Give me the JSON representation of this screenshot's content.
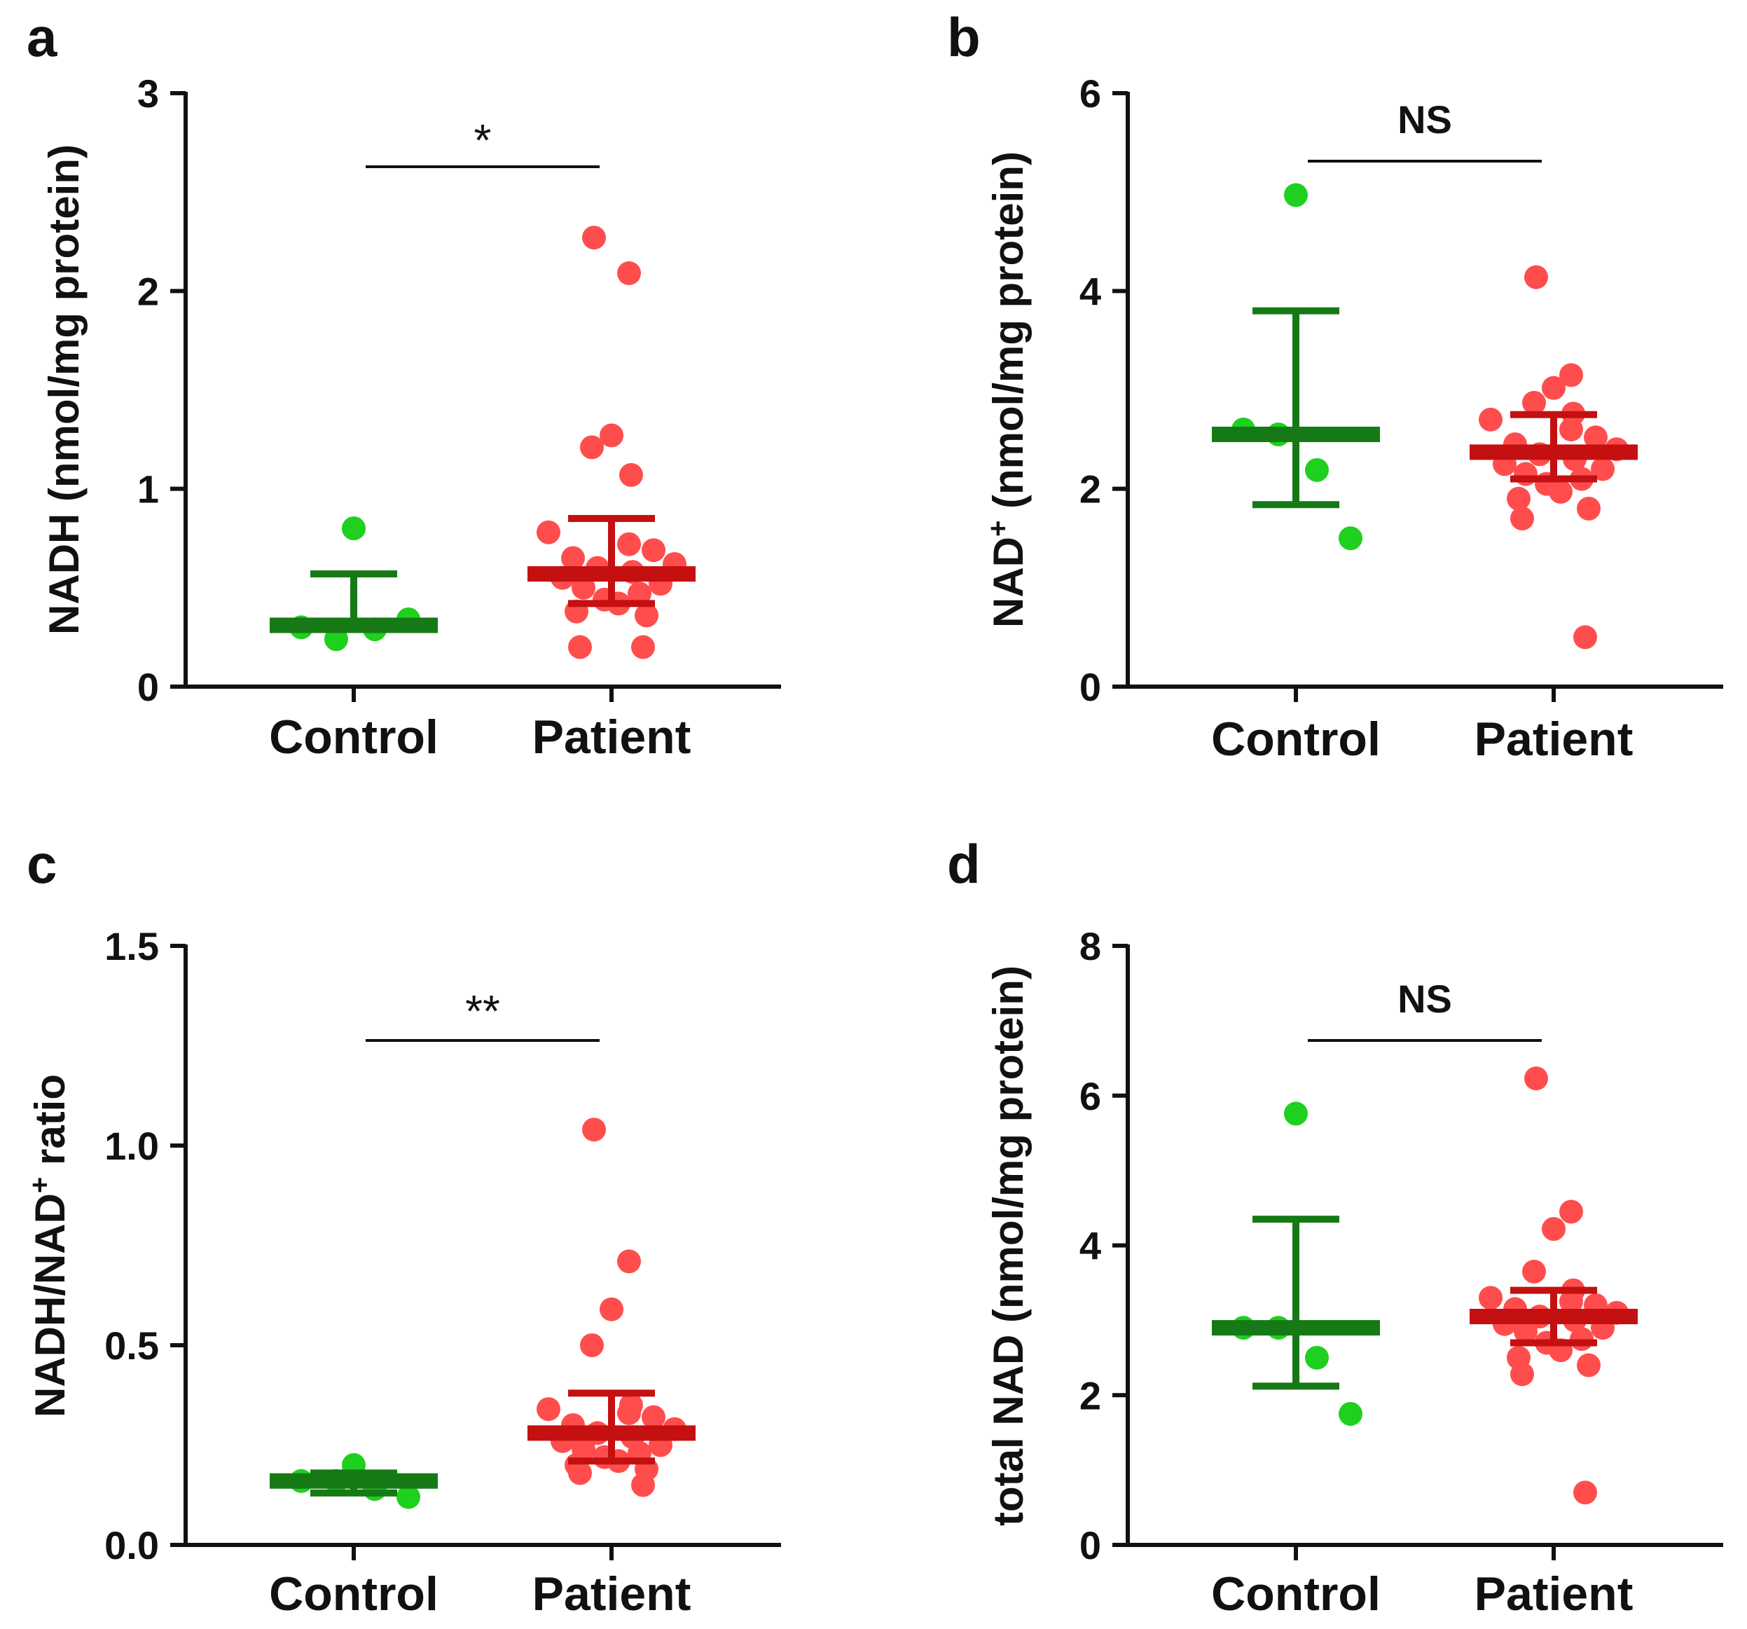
{
  "chart_data": [
    {
      "panel": "a",
      "type": "scatter",
      "title": "",
      "categories": [
        "Control",
        "Patient"
      ],
      "ylabel_parts": [
        {
          "t": "NADH (nmol/mg protein)"
        }
      ],
      "ylim": [
        0,
        3
      ],
      "yticks": [
        0,
        1,
        2,
        3
      ],
      "ytick_labels": [
        "0",
        "1",
        "2",
        "3"
      ],
      "significance": "*",
      "groups": [
        {
          "name": "Control",
          "values": [
            0.8,
            0.3,
            0.24,
            0.29,
            0.34
          ],
          "mean": 0.31,
          "err_low": 0.29,
          "err_high": 0.57
        },
        {
          "name": "Patient",
          "values": [
            2.27,
            2.09,
            1.27,
            1.21,
            1.07,
            0.78,
            0.72,
            0.69,
            0.65,
            0.62,
            0.6,
            0.58,
            0.55,
            0.52,
            0.5,
            0.47,
            0.44,
            0.42,
            0.38,
            0.36,
            0.2,
            0.2
          ],
          "mean": 0.57,
          "err_low": 0.42,
          "err_high": 0.85
        }
      ]
    },
    {
      "panel": "b",
      "type": "scatter",
      "title": "",
      "categories": [
        "Control",
        "Patient"
      ],
      "ylabel_parts": [
        {
          "t": "NAD"
        },
        {
          "t": "+",
          "sup": true
        },
        {
          "t": " (nmol/mg protein)"
        }
      ],
      "ylim": [
        0,
        6
      ],
      "yticks": [
        0,
        2,
        4,
        6
      ],
      "ytick_labels": [
        "0",
        "2",
        "4",
        "6"
      ],
      "significance": "NS",
      "groups": [
        {
          "name": "Control",
          "values": [
            4.97,
            2.6,
            2.55,
            2.19,
            1.5
          ],
          "mean": 2.55,
          "err_low": 1.84,
          "err_high": 3.8
        },
        {
          "name": "Patient",
          "values": [
            4.14,
            3.15,
            3.02,
            2.87,
            2.76,
            2.7,
            2.6,
            2.52,
            2.45,
            2.4,
            2.35,
            2.3,
            2.25,
            2.2,
            2.15,
            2.1,
            2.05,
            1.97,
            1.9,
            1.8,
            1.7,
            0.5
          ],
          "mean": 2.37,
          "err_low": 2.1,
          "err_high": 2.75
        }
      ]
    },
    {
      "panel": "c",
      "type": "scatter",
      "title": "",
      "categories": [
        "Control",
        "Patient"
      ],
      "ylabel_parts": [
        {
          "t": "NADH/NAD"
        },
        {
          "t": "+",
          "sup": true
        },
        {
          "t": " ratio"
        }
      ],
      "ylim": [
        0,
        1.5
      ],
      "yticks": [
        0,
        0.5,
        1.0,
        1.5
      ],
      "ytick_labels": [
        "0.0",
        "0.5",
        "1.0",
        "1.5"
      ],
      "significance": "**",
      "groups": [
        {
          "name": "Control",
          "values": [
            0.2,
            0.16,
            0.16,
            0.14,
            0.12
          ],
          "mean": 0.16,
          "err_low": 0.13,
          "err_high": 0.18
        },
        {
          "name": "Patient",
          "values": [
            1.04,
            0.71,
            0.59,
            0.5,
            0.35,
            0.34,
            0.33,
            0.32,
            0.3,
            0.29,
            0.28,
            0.27,
            0.26,
            0.25,
            0.24,
            0.23,
            0.22,
            0.21,
            0.2,
            0.19,
            0.18,
            0.15
          ],
          "mean": 0.28,
          "err_low": 0.21,
          "err_high": 0.38
        }
      ]
    },
    {
      "panel": "d",
      "type": "scatter",
      "title": "",
      "categories": [
        "Control",
        "Patient"
      ],
      "ylabel_parts": [
        {
          "t": "total NAD (nmol/mg protein)"
        }
      ],
      "ylim": [
        0,
        8
      ],
      "yticks": [
        0,
        2,
        4,
        6,
        8
      ],
      "ytick_labels": [
        "0",
        "2",
        "4",
        "6",
        "8"
      ],
      "significance": "NS",
      "groups": [
        {
          "name": "Control",
          "values": [
            5.76,
            2.9,
            2.9,
            2.5,
            1.75
          ],
          "mean": 2.9,
          "err_low": 2.12,
          "err_high": 4.35
        },
        {
          "name": "Patient",
          "values": [
            6.23,
            4.45,
            4.22,
            3.65,
            3.4,
            3.3,
            3.25,
            3.2,
            3.15,
            3.1,
            3.05,
            3.0,
            2.95,
            2.9,
            2.85,
            2.75,
            2.7,
            2.6,
            2.5,
            2.4,
            2.28,
            0.7
          ],
          "mean": 3.05,
          "err_low": 2.7,
          "err_high": 3.4
        }
      ]
    }
  ],
  "colors": {
    "control_point": "#1fd01f",
    "control_line": "#157a15",
    "patient_point": "#ff4d4d",
    "patient_line": "#c41010",
    "axis": "#111111"
  }
}
